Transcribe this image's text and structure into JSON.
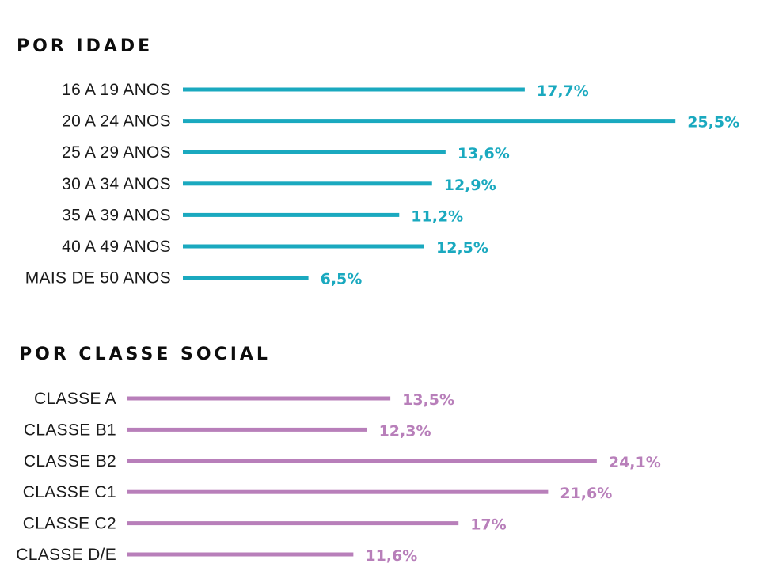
{
  "colors": {
    "age": "#1aa9bf",
    "class": "#b87fba",
    "title": "#0d0d0d",
    "label": "#1a1a1a"
  },
  "chart_data": [
    {
      "type": "bar",
      "orientation": "horizontal",
      "title": "POR IDADE",
      "categories": [
        "16 A 19 ANOS",
        "20 A 24 ANOS",
        "25 A 29 ANOS",
        "30 A 34 ANOS",
        "35 A 39 ANOS",
        "40 A 49 ANOS",
        "MAIS DE 50 ANOS"
      ],
      "values": [
        17.7,
        25.5,
        13.6,
        12.9,
        11.2,
        12.5,
        6.5
      ],
      "value_labels": [
        "17,7%",
        "25,5%",
        "13,6%",
        "12,9%",
        "11,2%",
        "12,5%",
        "6,5%"
      ],
      "unit": "%",
      "grid": false
    },
    {
      "type": "bar",
      "orientation": "horizontal",
      "title": "POR CLASSE SOCIAL",
      "categories": [
        "CLASSE A",
        "CLASSE B1",
        "CLASSE B2",
        "CLASSE C1",
        "CLASSE C2",
        "CLASSE D/E"
      ],
      "values": [
        13.5,
        12.3,
        24.1,
        21.6,
        17,
        11.6
      ],
      "value_labels": [
        "13,5%",
        "12,3%",
        "24,1%",
        "21,6%",
        "17%",
        "11,6%"
      ],
      "unit": "%",
      "grid": false
    }
  ]
}
